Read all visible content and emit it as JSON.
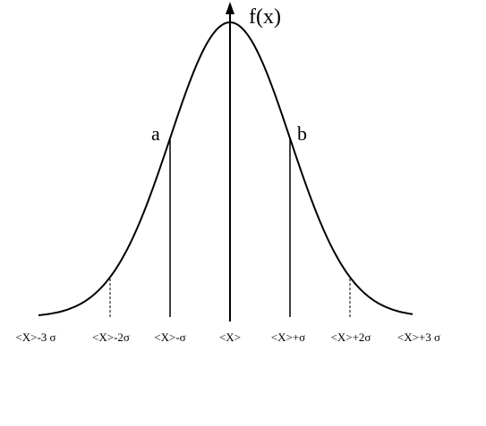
{
  "diagram": {
    "axis_label": "f(x)",
    "point_labels": [
      "a",
      "b"
    ],
    "x_labels": [
      "<X>-3 σ",
      "<X>-2σ",
      "<X>-σ",
      "<X>",
      "<X>+σ",
      "<X>+2σ",
      "<X>+3 σ"
    ]
  }
}
